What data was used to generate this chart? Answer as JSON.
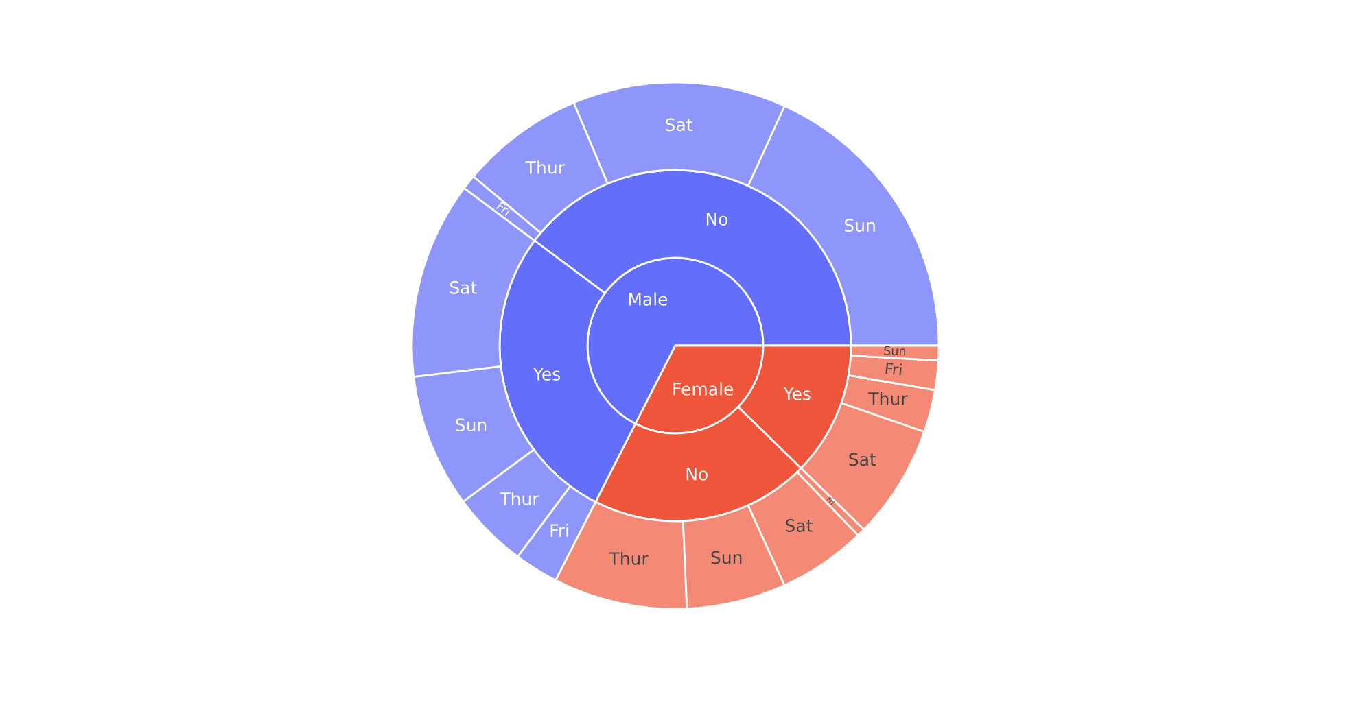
{
  "chart_data": {
    "type": "pie",
    "series": [
      {
        "values": [
          67.5,
          32.5
        ],
        "colors": [
          "#636efa",
          "#ef553b"
        ],
        "value_labels": [
          "Male",
          "Female"
        ]
      },
      {
        "values": [
          39.8,
          27.7,
          20.2,
          12.3
        ],
        "colors": [
          "#636efa",
          "#636efa",
          "#ef553b",
          "#ef553b"
        ],
        "value_labels": [
          "No",
          "Yes",
          "No",
          "Yes"
        ]
      },
      {
        "values": [
          18.2,
          13.1,
          7.6,
          0.9,
          12.1,
          8.2,
          4.7,
          2.7,
          8.2,
          6.1,
          5.4,
          0.5,
          7.0,
          2.6,
          1.8,
          0.9
        ],
        "colors": [
          "#8f96fb",
          "#8f96fb",
          "#8f96fb",
          "#8f96fb",
          "#8f96fb",
          "#8f96fb",
          "#8f96fb",
          "#8f96fb",
          "#f48a76",
          "#f48a76",
          "#f48a76",
          "#f48a76",
          "#f48a76",
          "#f48a76",
          "#f48a76",
          "#f48a76"
        ],
        "value_labels": [
          "Sun",
          "Sat",
          "Thur",
          "Fri",
          "Sat",
          "Sun",
          "Thur",
          "Fri",
          "Thur",
          "Sun",
          "Sat",
          "Fri",
          "Sat",
          "Thur",
          "Fri",
          "Sun"
        ]
      }
    ]
  }
}
